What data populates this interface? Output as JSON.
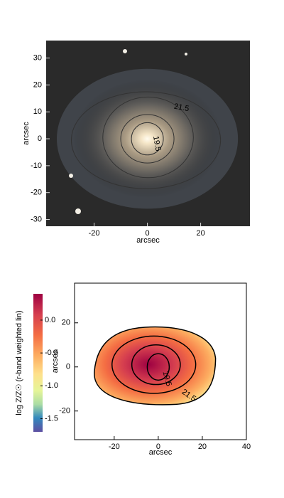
{
  "chart_data": [
    {
      "type": "image",
      "xlabel": "arcsec",
      "ylabel": "arcsec",
      "xlim": [
        -38,
        38.5
      ],
      "ylim": [
        -32.5,
        36.5
      ],
      "xticks": [
        -20,
        0,
        20
      ],
      "yticks": [
        -30,
        -20,
        -10,
        0,
        10,
        20,
        30
      ],
      "contour_levels": [
        21.5,
        19.5
      ]
    },
    {
      "type": "map",
      "xlabel": "arcsec",
      "ylabel": "arcsec",
      "xlim": [
        -38,
        40
      ],
      "ylim": [
        -33,
        38
      ],
      "xticks": [
        -20,
        0,
        20,
        40
      ],
      "yticks": [
        -20,
        0,
        20
      ],
      "contour_levels": [
        21.5,
        19.5
      ],
      "colorbar": {
        "label": "log Z/Z☉ (r-band weighted lin)",
        "lim": [
          -1.7,
          0.4
        ],
        "ticks": [
          {
            "value": 0,
            "label": "0.0"
          },
          {
            "value": -0.5,
            "label": "-0.5"
          },
          {
            "value": -1,
            "label": "-1.0"
          },
          {
            "value": -1.5,
            "label": "-1.5"
          }
        ]
      }
    }
  ]
}
